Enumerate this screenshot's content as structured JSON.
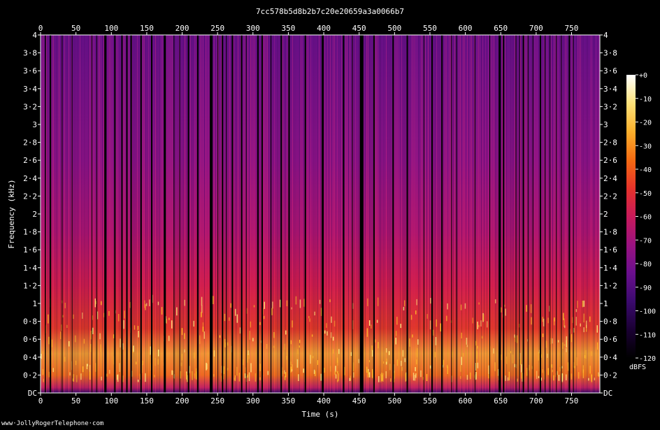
{
  "chart_data": {
    "type": "heatmap",
    "title": "7cc578b5d8b2b7c20e20659a3a0066b7",
    "xlabel": "Time (s)",
    "ylabel": "Frequency (kHz)",
    "xlim": [
      0,
      790
    ],
    "ylim": [
      0,
      4
    ],
    "x_ticks": [
      {
        "value": 0,
        "label": "0"
      },
      {
        "value": 50,
        "label": "50"
      },
      {
        "value": 100,
        "label": "100"
      },
      {
        "value": 150,
        "label": "150"
      },
      {
        "value": 200,
        "label": "200"
      },
      {
        "value": 250,
        "label": "250"
      },
      {
        "value": 300,
        "label": "300"
      },
      {
        "value": 350,
        "label": "350"
      },
      {
        "value": 400,
        "label": "400"
      },
      {
        "value": 450,
        "label": "450"
      },
      {
        "value": 500,
        "label": "500"
      },
      {
        "value": 550,
        "label": "550"
      },
      {
        "value": 600,
        "label": "600"
      },
      {
        "value": 650,
        "label": "650"
      },
      {
        "value": 700,
        "label": "700"
      },
      {
        "value": 750,
        "label": "750"
      }
    ],
    "y_ticks": [
      {
        "value": 0,
        "label": "DC"
      },
      {
        "value": 0.2,
        "label": "0·2"
      },
      {
        "value": 0.4,
        "label": "0·4"
      },
      {
        "value": 0.6,
        "label": "0·6"
      },
      {
        "value": 0.8,
        "label": "0·8"
      },
      {
        "value": 1.0,
        "label": "1"
      },
      {
        "value": 1.2,
        "label": "1·2"
      },
      {
        "value": 1.4,
        "label": "1·4"
      },
      {
        "value": 1.6,
        "label": "1·6"
      },
      {
        "value": 1.8,
        "label": "1·8"
      },
      {
        "value": 2.0,
        "label": "2"
      },
      {
        "value": 2.2,
        "label": "2·2"
      },
      {
        "value": 2.4,
        "label": "2·4"
      },
      {
        "value": 2.6,
        "label": "2·6"
      },
      {
        "value": 2.8,
        "label": "2·8"
      },
      {
        "value": 3.0,
        "label": "3"
      },
      {
        "value": 3.2,
        "label": "3·2"
      },
      {
        "value": 3.4,
        "label": "3·4"
      },
      {
        "value": 3.6,
        "label": "3·6"
      },
      {
        "value": 3.8,
        "label": "3·8"
      },
      {
        "value": 4.0,
        "label": "4"
      }
    ],
    "colorbar": {
      "unit": "dBFS",
      "range": [
        -120,
        0
      ],
      "ticks": [
        {
          "value": 0,
          "label": "+0"
        },
        {
          "value": -10,
          "label": "-10"
        },
        {
          "value": -20,
          "label": "-20"
        },
        {
          "value": -30,
          "label": "-30"
        },
        {
          "value": -40,
          "label": "-40"
        },
        {
          "value": -50,
          "label": "-50"
        },
        {
          "value": -60,
          "label": "-60"
        },
        {
          "value": -70,
          "label": "-70"
        },
        {
          "value": -80,
          "label": "-80"
        },
        {
          "value": -90,
          "label": "-90"
        },
        {
          "value": -100,
          "label": "-100"
        },
        {
          "value": -110,
          "label": "-110"
        },
        {
          "value": -120,
          "label": "-120"
        }
      ],
      "colors": [
        "#000000",
        "#1a0033",
        "#3b0a6e",
        "#6a0f8e",
        "#9b1280",
        "#c81a5a",
        "#e6332a",
        "#f56b12",
        "#fbb02c",
        "#fde27a",
        "#ffffff"
      ]
    },
    "silent_segments_s": [
      [
        6,
        7.5
      ],
      [
        13,
        15
      ],
      [
        30,
        31
      ],
      [
        44,
        45
      ],
      [
        72,
        73
      ],
      [
        79,
        80
      ],
      [
        90,
        93
      ],
      [
        104,
        106
      ],
      [
        114,
        116
      ],
      [
        121,
        123
      ],
      [
        127,
        129
      ],
      [
        141,
        143
      ],
      [
        156,
        158
      ],
      [
        174,
        177
      ],
      [
        188,
        189
      ],
      [
        196,
        197
      ],
      [
        208,
        210
      ],
      [
        221,
        223
      ],
      [
        239,
        243
      ],
      [
        250,
        251
      ],
      [
        256,
        258
      ],
      [
        262,
        263
      ],
      [
        270,
        272
      ],
      [
        283,
        285
      ],
      [
        290,
        291
      ],
      [
        306,
        308
      ],
      [
        312,
        314
      ],
      [
        325,
        326
      ],
      [
        339,
        341
      ],
      [
        350,
        352
      ],
      [
        373,
        375
      ],
      [
        397,
        400
      ],
      [
        427,
        429
      ],
      [
        440,
        441
      ],
      [
        451,
        456
      ],
      [
        470,
        472
      ],
      [
        497,
        499
      ],
      [
        517,
        519
      ],
      [
        541,
        542
      ],
      [
        552,
        554
      ],
      [
        566,
        568
      ],
      [
        580,
        581
      ],
      [
        587,
        588
      ],
      [
        613,
        614
      ],
      [
        634,
        635
      ],
      [
        647,
        650
      ],
      [
        653,
        655
      ],
      [
        671,
        672
      ],
      [
        676,
        677
      ],
      [
        681,
        683
      ],
      [
        688,
        689
      ],
      [
        695,
        696
      ],
      [
        705,
        707
      ],
      [
        712,
        713
      ],
      [
        719,
        720
      ],
      [
        728,
        729
      ],
      [
        735,
        736
      ],
      [
        746,
        748
      ],
      [
        752,
        753
      ]
    ],
    "intensity_profile_dbfs": [
      {
        "freq_khz": 0.0,
        "dbfs": -100
      },
      {
        "freq_khz": 0.1,
        "dbfs": -60
      },
      {
        "freq_khz": 0.4,
        "dbfs": -25
      },
      {
        "freq_khz": 0.8,
        "dbfs": -40
      },
      {
        "freq_khz": 1.4,
        "dbfs": -55
      },
      {
        "freq_khz": 2.0,
        "dbfs": -65
      },
      {
        "freq_khz": 3.0,
        "dbfs": -75
      },
      {
        "freq_khz": 4.0,
        "dbfs": -78
      }
    ]
  },
  "footer": {
    "watermark": "www·JollyRogerTelephone·com"
  }
}
